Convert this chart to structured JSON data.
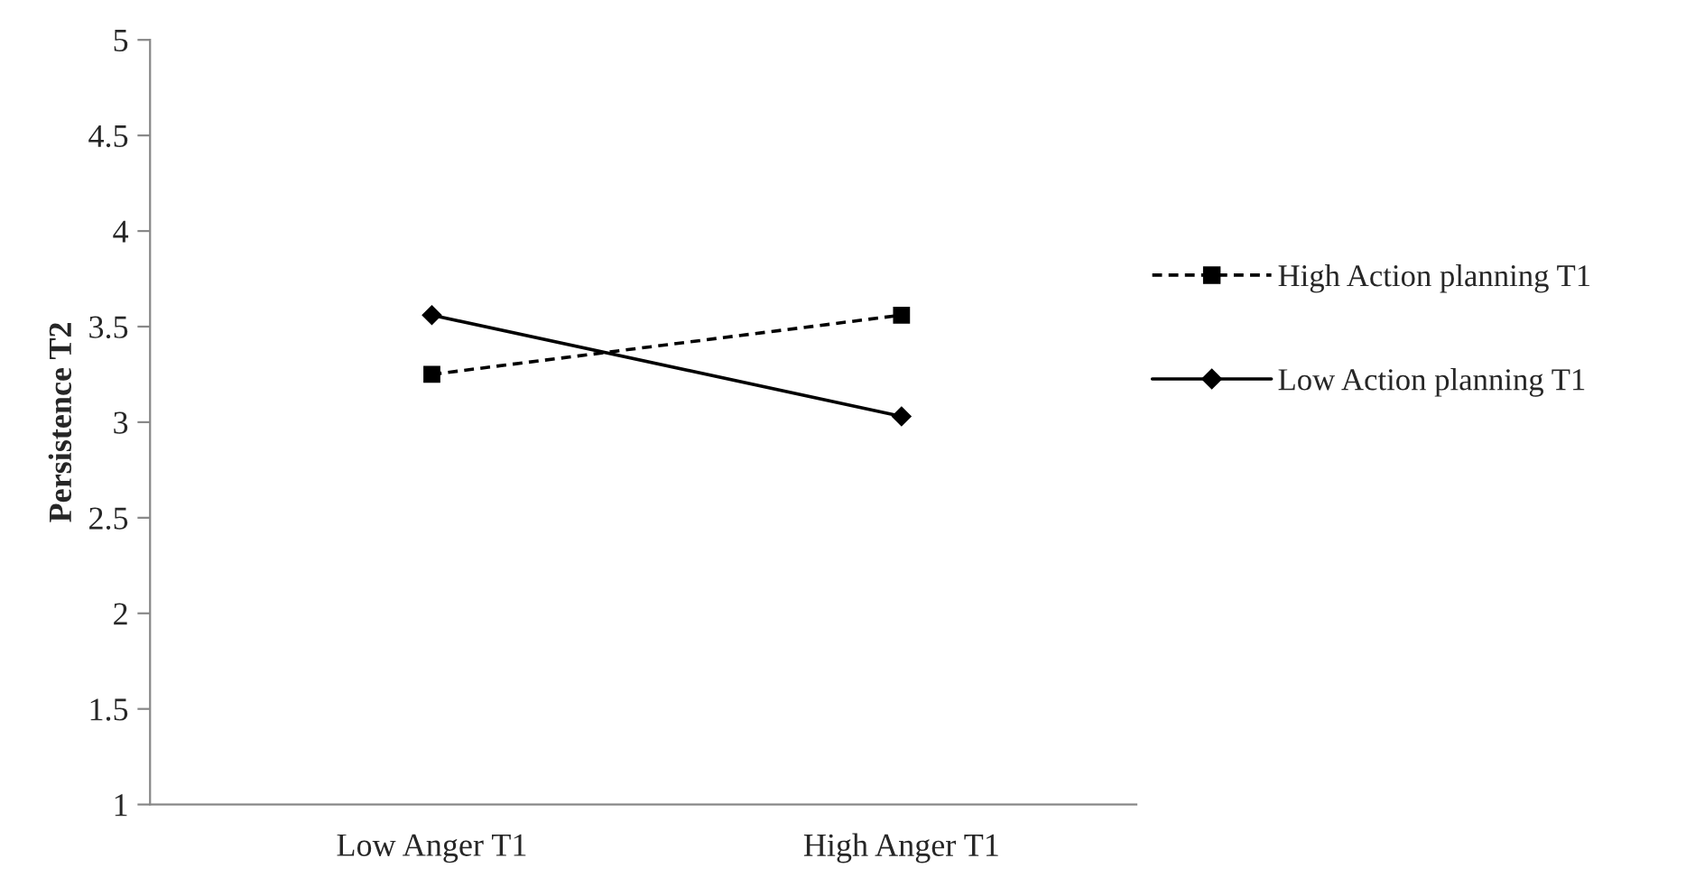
{
  "chart_data": {
    "type": "line",
    "ylabel": "Persistence T2",
    "categories": [
      "Low Anger T1",
      "High Anger T1"
    ],
    "series": [
      {
        "name": "High Action planning T1",
        "color": "#000000",
        "values": [
          3.25,
          3.56
        ],
        "marker": "square",
        "line_style": "dashed"
      },
      {
        "name": "Low Action planning T1",
        "color": "#000000",
        "values": [
          3.56,
          3.03
        ],
        "marker": "diamond",
        "line_style": "solid"
      }
    ],
    "ylim": [
      1,
      5
    ],
    "yticks": [
      1,
      1.5,
      2,
      2.5,
      3,
      3.5,
      4,
      4.5,
      5
    ],
    "grid": false,
    "legend": "right"
  }
}
